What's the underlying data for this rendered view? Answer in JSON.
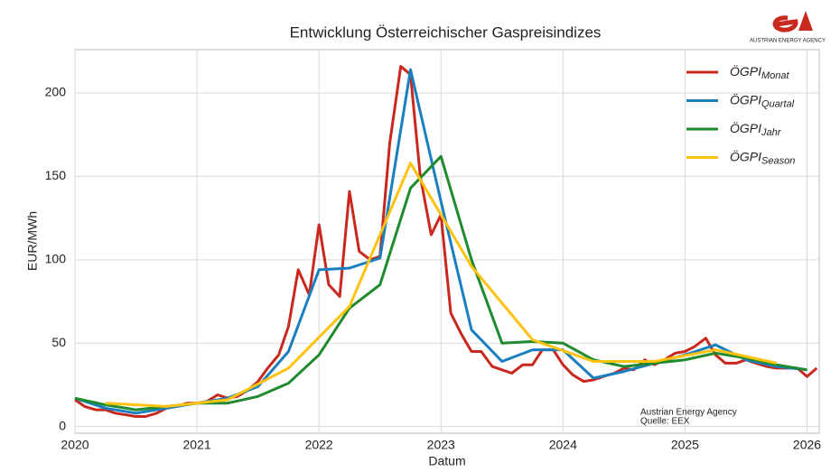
{
  "chart_data": {
    "type": "line",
    "title": "Entwicklung Österreichischer Gaspreisindizes",
    "x_label": "Datum",
    "y_label": "EUR/MWh",
    "annotation": [
      "Austrian Energy Agency",
      "Quelle: EEX"
    ],
    "logo_text": "AUSTRIAN ENERGY AGENCY",
    "xlim": [
      2020,
      2026.1
    ],
    "ylim": [
      -4,
      226
    ],
    "xticks": [
      2020,
      2021,
      2022,
      2023,
      2024,
      2025,
      2026
    ],
    "yticks": [
      0,
      50,
      100,
      150,
      200
    ],
    "grid": true,
    "legend": "upper right",
    "series": [
      {
        "name": "ÖGPI",
        "subscript": "Monat",
        "color": "#c8281e",
        "x": [
          2020.0,
          2020.08,
          2020.17,
          2020.25,
          2020.33,
          2020.42,
          2020.5,
          2020.58,
          2020.67,
          2020.75,
          2020.83,
          2020.92,
          2021.0,
          2021.08,
          2021.17,
          2021.25,
          2021.33,
          2021.42,
          2021.5,
          2021.58,
          2021.67,
          2021.75,
          2021.83,
          2021.92,
          2022.0,
          2022.08,
          2022.17,
          2022.25,
          2022.33,
          2022.42,
          2022.5,
          2022.58,
          2022.67,
          2022.75,
          2022.83,
          2022.92,
          2023.0,
          2023.08,
          2023.17,
          2023.25,
          2023.33,
          2023.42,
          2023.5,
          2023.58,
          2023.67,
          2023.75,
          2023.83,
          2023.92,
          2024.0,
          2024.08,
          2024.17,
          2024.25,
          2024.33,
          2024.42,
          2024.5,
          2024.58,
          2024.67,
          2024.75,
          2024.83,
          2024.92,
          2025.0,
          2025.08,
          2025.17,
          2025.25,
          2025.33,
          2025.42,
          2025.5,
          2025.58,
          2025.67,
          2025.75,
          2025.83,
          2025.92,
          2026.0,
          2026.08
        ],
        "values": [
          16,
          12,
          10,
          10,
          8,
          7,
          6,
          6,
          8,
          11,
          12,
          14,
          14,
          15,
          19,
          17,
          18,
          22,
          27,
          35,
          43,
          60,
          94,
          79,
          121,
          85,
          78,
          141,
          105,
          100,
          102,
          170,
          216,
          211,
          150,
          115,
          127,
          68,
          55,
          45,
          45,
          36,
          34,
          32,
          37,
          37,
          46,
          46,
          37,
          31,
          27,
          28,
          30,
          32,
          35,
          34,
          40,
          37,
          40,
          44,
          45,
          48,
          53,
          43,
          38,
          38,
          40,
          38,
          36,
          35,
          35,
          35,
          30,
          35
        ]
      },
      {
        "name": "ÖGPI",
        "subscript": "Quartal",
        "color": "#1a7fc1",
        "x": [
          2020.0,
          2020.25,
          2020.5,
          2020.75,
          2021.0,
          2021.25,
          2021.5,
          2021.75,
          2022.0,
          2022.25,
          2022.5,
          2022.75,
          2023.0,
          2023.25,
          2023.5,
          2023.75,
          2024.0,
          2024.25,
          2024.5,
          2024.75,
          2025.0,
          2025.25,
          2025.5,
          2025.75,
          2026.0
        ],
        "values": [
          17,
          11,
          8,
          11,
          14,
          17,
          24,
          45,
          94,
          95,
          101,
          214,
          135,
          58,
          39,
          46,
          46,
          29,
          33,
          38,
          43,
          49,
          40,
          36,
          34
        ]
      },
      {
        "name": "ÖGPI",
        "subscript": "Jahr",
        "color": "#1f8a2e",
        "x": [
          2020.0,
          2020.25,
          2020.5,
          2020.75,
          2021.0,
          2021.25,
          2021.5,
          2021.75,
          2022.0,
          2022.25,
          2022.5,
          2022.75,
          2023.0,
          2023.25,
          2023.5,
          2023.75,
          2024.0,
          2024.25,
          2024.5,
          2024.75,
          2025.0,
          2025.25,
          2025.5,
          2025.75,
          2026.0
        ],
        "values": [
          17,
          13,
          10,
          12,
          14,
          14,
          18,
          26,
          43,
          71,
          85,
          143,
          162,
          100,
          50,
          51,
          50,
          40,
          36,
          38,
          40,
          44,
          41,
          37,
          34
        ]
      },
      {
        "name": "ÖGPI",
        "subscript": "Season",
        "color": "#ffc20e",
        "x": [
          2020.25,
          2020.75,
          2021.25,
          2021.75,
          2022.25,
          2022.75,
          2023.25,
          2023.75,
          2024.25,
          2024.75,
          2025.25,
          2025.75
        ],
        "values": [
          14,
          12,
          16,
          35,
          72,
          158,
          96,
          52,
          39,
          39,
          46,
          38
        ]
      }
    ]
  }
}
